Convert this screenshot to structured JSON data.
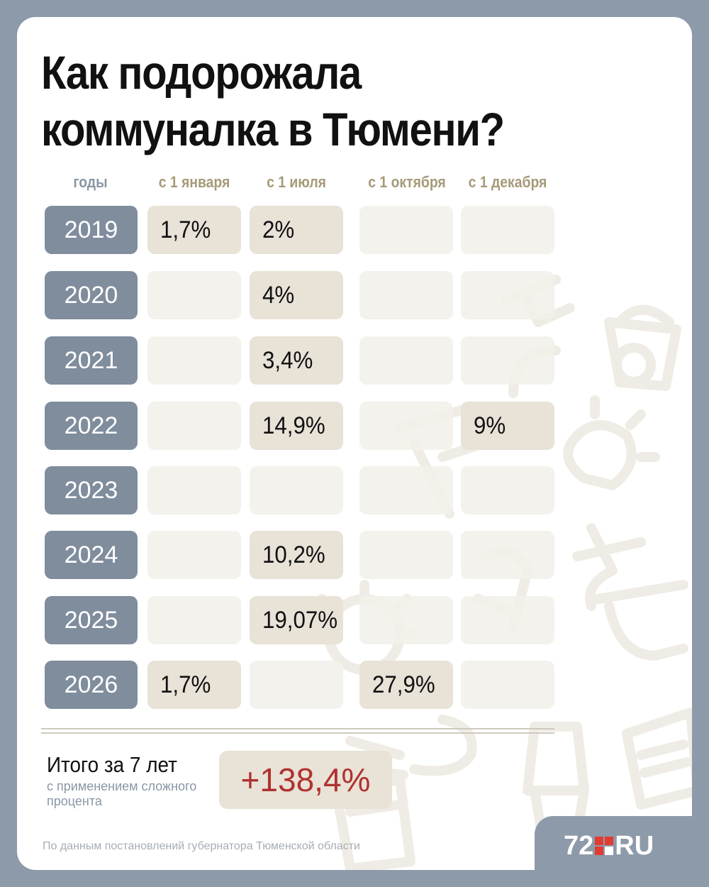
{
  "title": {
    "line1": "Как подорожала",
    "line2": "коммуналка в Тюмени?"
  },
  "table": {
    "headers": [
      "годы",
      "с 1 января",
      "с 1 июля",
      "с 1 октября",
      "с 1 декабря"
    ],
    "rows": [
      {
        "year": "2019",
        "values": [
          "1,7%",
          "2%",
          "",
          ""
        ]
      },
      {
        "year": "2020",
        "values": [
          "",
          "4%",
          "",
          ""
        ]
      },
      {
        "year": "2021",
        "values": [
          "",
          "3,4%",
          "",
          ""
        ]
      },
      {
        "year": "2022",
        "values": [
          "",
          "14,9%",
          "",
          "9%"
        ]
      },
      {
        "year": "2023",
        "values": [
          "",
          "",
          "",
          ""
        ]
      },
      {
        "year": "2024",
        "values": [
          "",
          "10,2%",
          "",
          ""
        ]
      },
      {
        "year": "2025",
        "values": [
          "",
          "19,07%",
          "",
          ""
        ]
      },
      {
        "year": "2026",
        "values": [
          "1,7%",
          "",
          "27,9%",
          ""
        ]
      }
    ]
  },
  "total": {
    "label": "Итого за 7 лет",
    "note": "с применением сложного процента",
    "value": "+138,4%"
  },
  "source": "По данным постановлений губернатора Тюменской области",
  "logo": {
    "left": "72",
    "right": "RU"
  },
  "colors": {
    "frame": "#8d9aa9",
    "year_cell": "#7f8d9d",
    "value_cell": "#e8e2d7",
    "empty_cell": "#f3f0e9",
    "header_month": "#a69a78",
    "header_years": "#8a97a5",
    "total_value": "#b0312e",
    "logo_accent": "#e03c31"
  }
}
